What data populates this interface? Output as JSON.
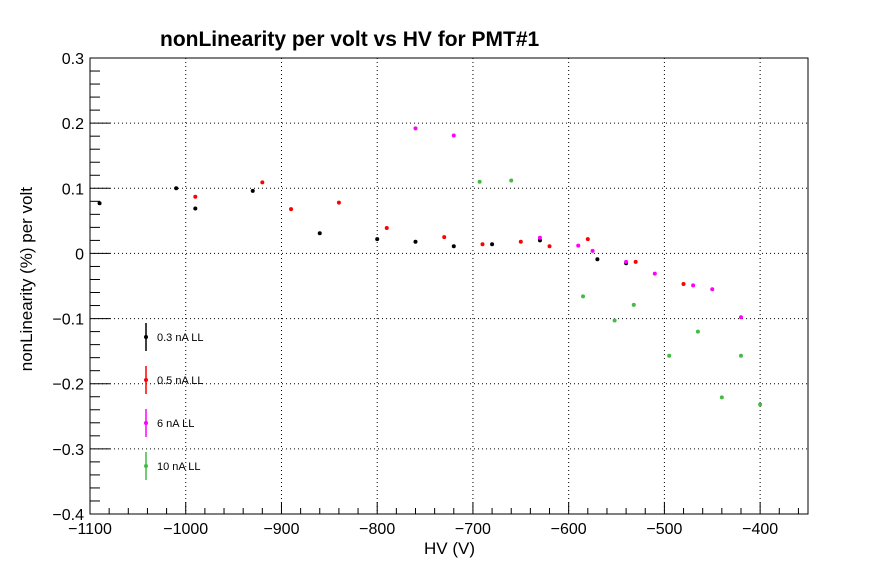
{
  "chart_data": {
    "type": "scatter",
    "title": "nonLinearity per volt vs HV for PMT#1",
    "xlabel": "HV (V)",
    "ylabel": "nonLinearity (%) per volt",
    "xlim": [
      -1100,
      -350
    ],
    "ylim": [
      -0.4,
      0.3
    ],
    "x_ticks": [
      -1100,
      -1000,
      -900,
      -800,
      -700,
      -600,
      -500,
      -400
    ],
    "x_tick_labels": [
      "−1100",
      "−1000",
      "−900",
      "−800",
      "−700",
      "−600",
      "−500",
      "−400"
    ],
    "y_ticks": [
      -0.4,
      -0.3,
      -0.2,
      -0.1,
      0,
      0.1,
      0.2,
      0.3
    ],
    "y_tick_labels": [
      "−0.4",
      "−0.3",
      "−0.2",
      "−0.1",
      "0",
      "0.1",
      "0.2",
      "0.3"
    ],
    "grid": true,
    "legend_position": "left-bottom",
    "series": [
      {
        "name": "0.3 nA LL",
        "color": "#000000",
        "points": [
          [
            -1090,
            0.077
          ],
          [
            -1010,
            0.1
          ],
          [
            -990,
            0.069
          ],
          [
            -930,
            0.096
          ],
          [
            -860,
            0.031
          ],
          [
            -800,
            0.022
          ],
          [
            -760,
            0.018
          ],
          [
            -720,
            0.011
          ],
          [
            -680,
            0.014
          ],
          [
            -630,
            0.02
          ],
          [
            -570,
            -0.009
          ],
          [
            -540,
            -0.015
          ]
        ]
      },
      {
        "name": "0.5 nA LL",
        "color": "#ff0000",
        "points": [
          [
            -990,
            0.087
          ],
          [
            -920,
            0.109
          ],
          [
            -890,
            0.068
          ],
          [
            -840,
            0.078
          ],
          [
            -790,
            0.039
          ],
          [
            -730,
            0.025
          ],
          [
            -690,
            0.014
          ],
          [
            -650,
            0.018
          ],
          [
            -620,
            0.011
          ],
          [
            -580,
            0.022
          ],
          [
            -530,
            -0.013
          ],
          [
            -480,
            -0.047
          ]
        ]
      },
      {
        "name": "6 nA LL",
        "color": "#ff00ff",
        "points": [
          [
            -760,
            0.192
          ],
          [
            -720,
            0.181
          ],
          [
            -630,
            0.024
          ],
          [
            -590,
            0.012
          ],
          [
            -575,
            0.004
          ],
          [
            -540,
            -0.013
          ],
          [
            -510,
            -0.031
          ],
          [
            -470,
            -0.049
          ],
          [
            -450,
            -0.055
          ],
          [
            -420,
            -0.098
          ]
        ]
      },
      {
        "name": "10 nA LL",
        "color": "#44bb44",
        "points": [
          [
            -693,
            0.11
          ],
          [
            -660,
            0.112
          ],
          [
            -585,
            -0.066
          ],
          [
            -552,
            -0.103
          ],
          [
            -532,
            -0.079
          ],
          [
            -495,
            -0.157
          ],
          [
            -465,
            -0.12
          ],
          [
            -440,
            -0.221
          ],
          [
            -420,
            -0.157
          ],
          [
            -400,
            -0.232
          ]
        ]
      }
    ]
  }
}
